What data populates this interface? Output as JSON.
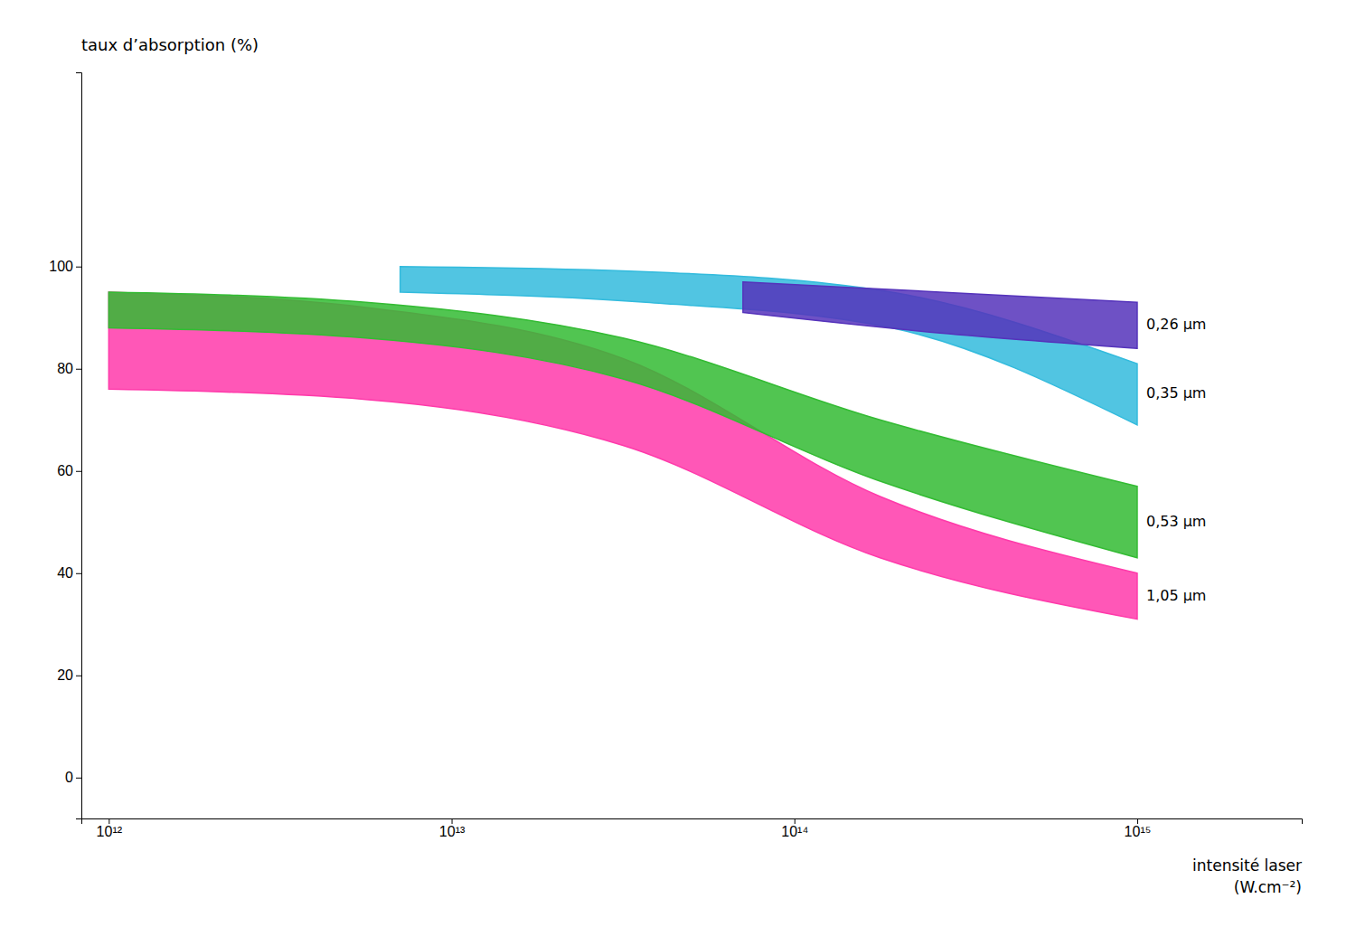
{
  "chart_data": {
    "type": "area",
    "y_label": "taux d’absorption (%)",
    "x_label": [
      "intensité laser",
      "(W.cm⁻²)"
    ],
    "xlim": [
      11.92,
      15.48
    ],
    "ylim": [
      -8,
      138
    ],
    "xticks": [
      {
        "value": 12,
        "label": "10¹²"
      },
      {
        "value": 13,
        "label": "10¹³"
      },
      {
        "value": 14,
        "label": "10¹⁴"
      },
      {
        "value": 15,
        "label": "10¹⁵"
      }
    ],
    "yticks": [
      0,
      20,
      40,
      60,
      80,
      100
    ],
    "grid": false,
    "series": [
      {
        "name": "1,05 μm",
        "color": "#ff3aaa",
        "x": [
          12.0,
          12.75,
          13.5,
          14.25,
          15.0
        ],
        "values": [
          95,
          92,
          82,
          55,
          40
        ],
        "lower": [
          76,
          74,
          65,
          43,
          31
        ]
      },
      {
        "name": "0,53 μm",
        "color": "#33bb33",
        "x": [
          12.0,
          12.75,
          13.5,
          14.25,
          15.0
        ],
        "values": [
          95,
          93,
          86,
          70,
          57
        ],
        "lower": [
          88,
          86,
          78,
          58,
          43
        ]
      },
      {
        "name": "0,35 μm",
        "color": "#33bbdd",
        "x": [
          12.85,
          13.566666666666666,
          14.283333333333333,
          15.0
        ],
        "values": [
          100,
          99,
          95,
          81
        ],
        "lower": [
          95,
          93,
          88,
          69
        ]
      },
      {
        "name": "0,26 μm",
        "color": "#5533bb",
        "x": [
          13.85,
          14.425,
          15.0
        ],
        "values": [
          97,
          95,
          93
        ],
        "lower": [
          91,
          87,
          84
        ]
      }
    ]
  }
}
